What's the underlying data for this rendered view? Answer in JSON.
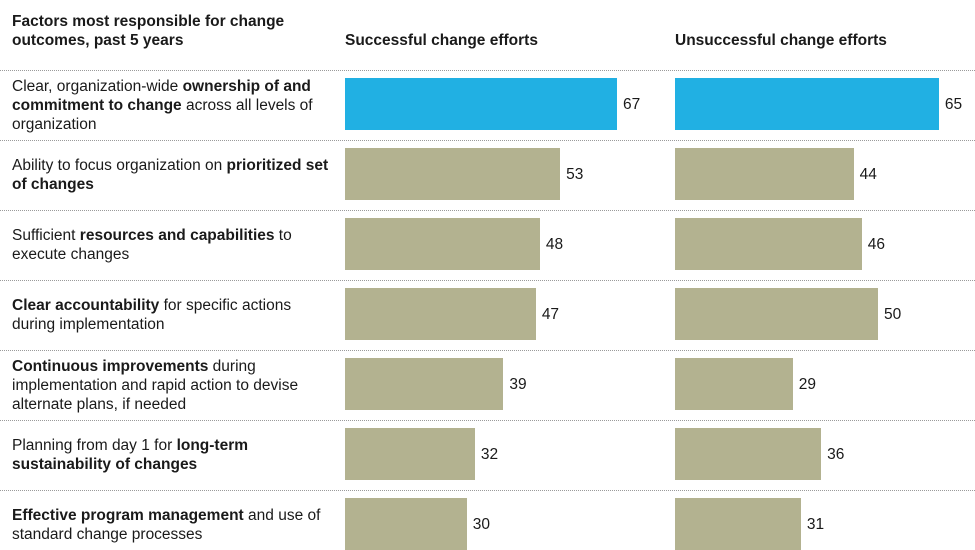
{
  "header": {
    "factors": "Factors most responsible for change outcomes, past 5 years",
    "successful": "Successful change efforts",
    "unsuccessful": "Unsuccessful change efforts"
  },
  "colors": {
    "highlight": "#21b0e3",
    "standard": "#b3b290"
  },
  "chart_data": {
    "type": "bar",
    "orientation": "horizontal",
    "categories": [
      "Clear, organization-wide ownership of and commitment to change across all levels of organization",
      "Ability to focus organization on prioritized set of changes",
      "Sufficient resources and capabilities to execute changes",
      "Clear accountability for specific actions during implementation",
      "Continuous improvements during implementation and rapid action to devise alternate plans, if needed",
      "Planning from day 1 for long-term sustainability of changes",
      "Effective program management and use of standard change processes"
    ],
    "category_segments": [
      [
        {
          "t": "Clear, organization-wide ",
          "b": false
        },
        {
          "t": "ownership of and commitment to change",
          "b": true
        },
        {
          "t": " across all levels of organization",
          "b": false
        }
      ],
      [
        {
          "t": "Ability to focus organization on ",
          "b": false
        },
        {
          "t": "prioritized set of changes",
          "b": true
        }
      ],
      [
        {
          "t": "Sufficient ",
          "b": false
        },
        {
          "t": "resources and capabilities",
          "b": true
        },
        {
          "t": " to execute changes",
          "b": false
        }
      ],
      [
        {
          "t": "Clear accountability",
          "b": true
        },
        {
          "t": " for specific actions during implementation",
          "b": false
        }
      ],
      [
        {
          "t": "Continuous improvements",
          "b": true
        },
        {
          "t": " during implementation and rapid action to devise alternate plans, if needed",
          "b": false
        }
      ],
      [
        {
          "t": "Planning from day 1 for ",
          "b": false
        },
        {
          "t": "long-term sustainability of changes",
          "b": true
        }
      ],
      [
        {
          "t": "Effective program management",
          "b": true
        },
        {
          "t": " and use of standard change processes",
          "b": false
        }
      ]
    ],
    "series": [
      {
        "name": "Successful change efforts",
        "values": [
          67,
          53,
          48,
          47,
          39,
          32,
          30
        ]
      },
      {
        "name": "Unsuccessful change efforts",
        "values": [
          65,
          44,
          46,
          50,
          29,
          36,
          31
        ]
      }
    ],
    "highlighted_category_index": 0,
    "grid": false,
    "xlim": [
      0,
      100
    ]
  }
}
